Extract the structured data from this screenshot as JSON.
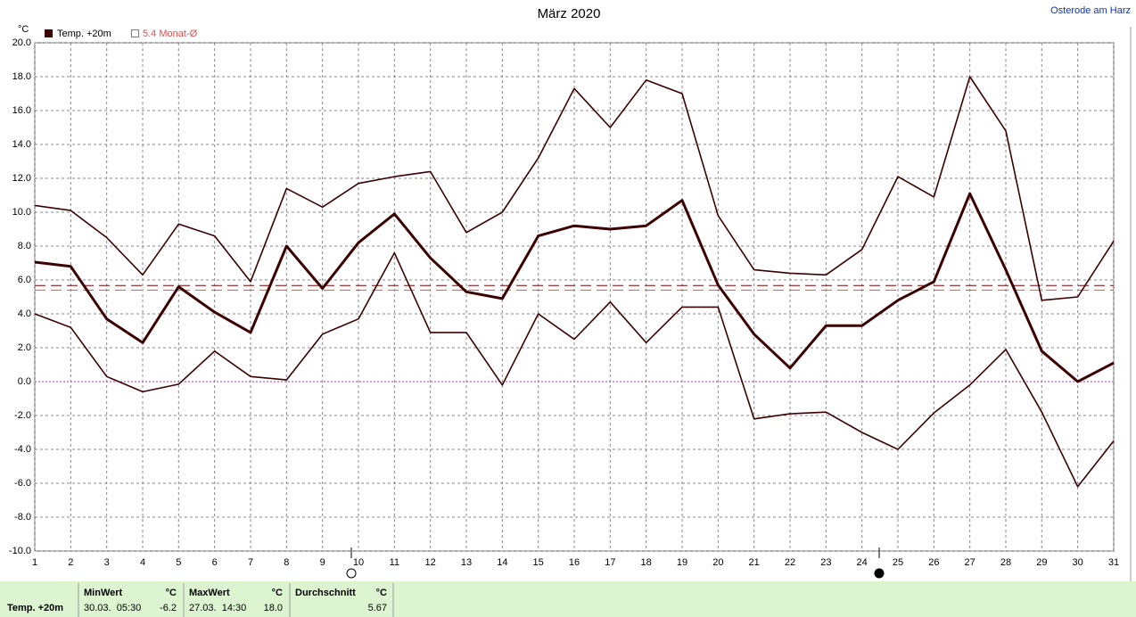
{
  "chart_data": {
    "type": "line",
    "title": "März 2020",
    "annotation": "Osterode am Harz",
    "y_label": "°C",
    "x": [
      1,
      2,
      3,
      4,
      5,
      6,
      7,
      8,
      9,
      10,
      11,
      12,
      13,
      14,
      15,
      16,
      17,
      18,
      19,
      20,
      21,
      22,
      23,
      24,
      25,
      26,
      27,
      28,
      29,
      30,
      31
    ],
    "xlim": [
      1,
      31
    ],
    "xticks": [
      1,
      2,
      3,
      4,
      5,
      6,
      7,
      8,
      9,
      10,
      11,
      12,
      13,
      14,
      15,
      16,
      17,
      18,
      19,
      20,
      21,
      22,
      23,
      24,
      25,
      26,
      27,
      28,
      29,
      30,
      31
    ],
    "ylim": [
      -10,
      20
    ],
    "yticks": [
      {
        "value": -10,
        "label": "-10.0"
      },
      {
        "value": -8,
        "label": "-8.0"
      },
      {
        "value": -6,
        "label": "-6.0"
      },
      {
        "value": -4,
        "label": "-4.0"
      },
      {
        "value": -2,
        "label": "-2.0"
      },
      {
        "value": 0,
        "label": "0.0"
      },
      {
        "value": 2,
        "label": "2.0"
      },
      {
        "value": 4,
        "label": "4.0"
      },
      {
        "value": 6,
        "label": "6.0"
      },
      {
        "value": 8,
        "label": "8.0"
      },
      {
        "value": 10,
        "label": "10.0"
      },
      {
        "value": 12,
        "label": "12.0"
      },
      {
        "value": 14,
        "label": "14.0"
      },
      {
        "value": 16,
        "label": "16.0"
      },
      {
        "value": 18,
        "label": "18.0"
      },
      {
        "value": 20,
        "label": "20.0"
      }
    ],
    "grid": true,
    "series": [
      {
        "name": "Temp. +20m",
        "color": "#3c0000",
        "values": [
          7.05,
          6.8,
          3.7,
          2.3,
          5.6,
          4.1,
          2.9,
          8.0,
          5.5,
          8.2,
          9.9,
          7.3,
          5.3,
          4.9,
          8.6,
          9.2,
          9.0,
          9.2,
          10.7,
          5.7,
          2.8,
          0.8,
          3.3,
          3.3,
          4.8,
          5.9,
          11.1,
          6.6,
          1.8,
          0.0,
          1.1
        ]
      },
      {
        "color": "#3c0000",
        "values": [
          10.4,
          10.1,
          8.5,
          6.3,
          9.3,
          8.6,
          5.9,
          11.4,
          10.3,
          11.7,
          12.1,
          12.4,
          8.8,
          10.0,
          13.2,
          17.3,
          15.0,
          17.8,
          17.0,
          9.8,
          6.6,
          6.4,
          6.3,
          7.8,
          12.1,
          10.9,
          18.0,
          14.8,
          4.8,
          5.0,
          8.3
        ]
      },
      {
        "color": "#3c0000",
        "values": [
          4.0,
          3.2,
          0.3,
          -0.6,
          -0.15,
          1.8,
          0.3,
          0.1,
          2.8,
          3.7,
          7.6,
          2.9,
          2.9,
          -0.2,
          4.0,
          2.5,
          4.7,
          2.3,
          4.4,
          4.4,
          -2.2,
          -1.9,
          -1.8,
          -3.0,
          -4.0,
          -1.85,
          -0.2,
          1.9,
          -1.8,
          -6.2,
          -3.5
        ]
      }
    ],
    "reference": {
      "value": 5.4,
      "label": "5.4 Monat-Ø",
      "color": "#e05050"
    }
  },
  "footer": {
    "label": "Temp. +20m",
    "min": {
      "title": "MinWert",
      "unit": "°C",
      "time": "30.03.  05:30",
      "value": "-6.2"
    },
    "max": {
      "title": "MaxWert",
      "unit": "°C",
      "time": "27.03.  14:30",
      "value": "18.0"
    },
    "average": {
      "title": "Durchschnitt",
      "unit": "°C",
      "value": 5.67
    }
  }
}
